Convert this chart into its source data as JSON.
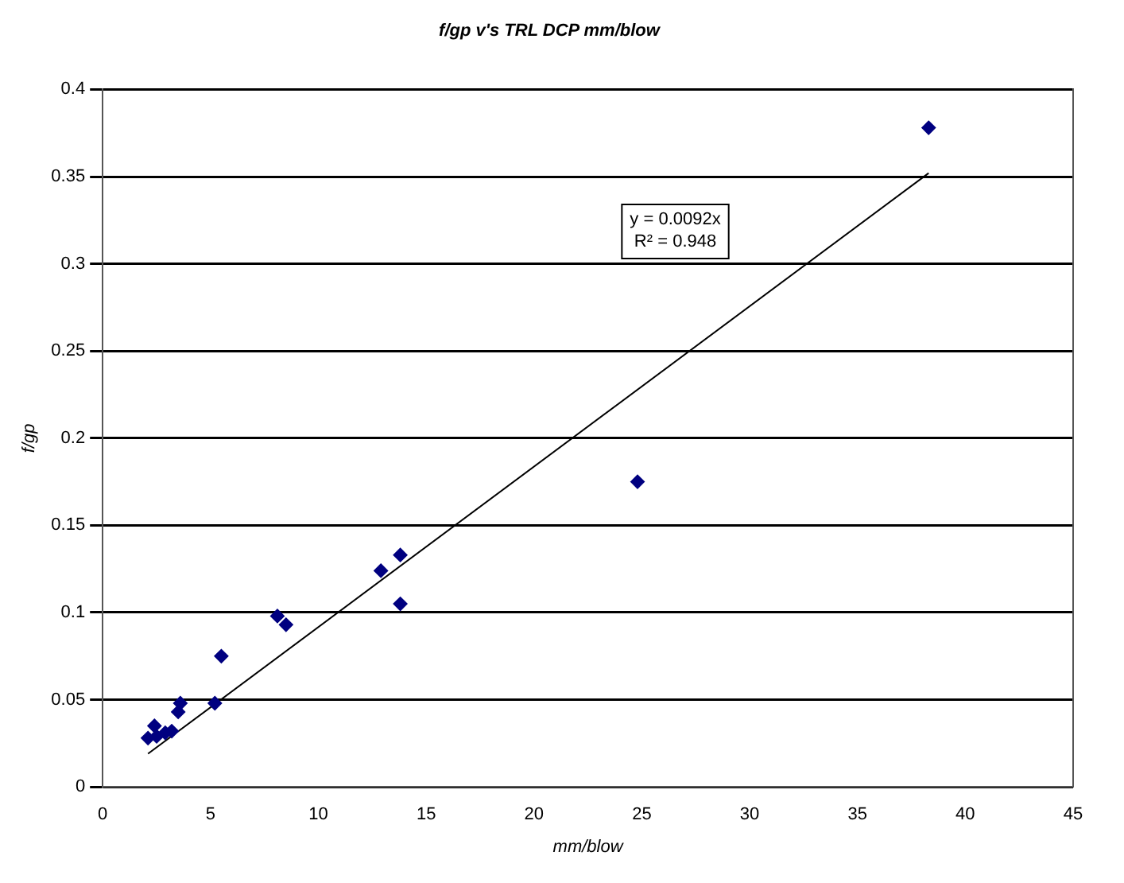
{
  "chart_data": {
    "type": "scatter",
    "title": "f/gp v's TRL DCP mm/blow",
    "xlabel": "mm/blow",
    "ylabel": "f/gp",
    "xlim": [
      0,
      45
    ],
    "xticks": [
      0,
      5,
      10,
      15,
      20,
      25,
      30,
      35,
      40,
      45
    ],
    "ylim": [
      0,
      0.4
    ],
    "yticks": [
      0,
      0.05,
      0.1,
      0.15,
      0.2,
      0.25,
      0.3,
      0.35,
      0.4
    ],
    "grid": "y",
    "legend": false,
    "marker": "diamond",
    "annotations": [
      "y = 0.0092x",
      "R² = 0.948"
    ],
    "series": [
      {
        "type": "scatter",
        "color": "#000080",
        "x": [
          2.1,
          2.4,
          2.5,
          2.9,
          3.2,
          3.5,
          3.6,
          5.2,
          5.5,
          8.1,
          8.5,
          12.9,
          13.8,
          13.8,
          24.8,
          38.3
        ],
        "values": [
          0.028,
          0.035,
          0.029,
          0.031,
          0.032,
          0.043,
          0.048,
          0.048,
          0.075,
          0.098,
          0.093,
          0.124,
          0.133,
          0.105,
          0.175,
          0.378
        ]
      },
      {
        "type": "line",
        "color": "#000000",
        "marker": "none",
        "x": [
          2.1,
          38.3
        ],
        "values": [
          0.019,
          0.352
        ]
      }
    ]
  }
}
